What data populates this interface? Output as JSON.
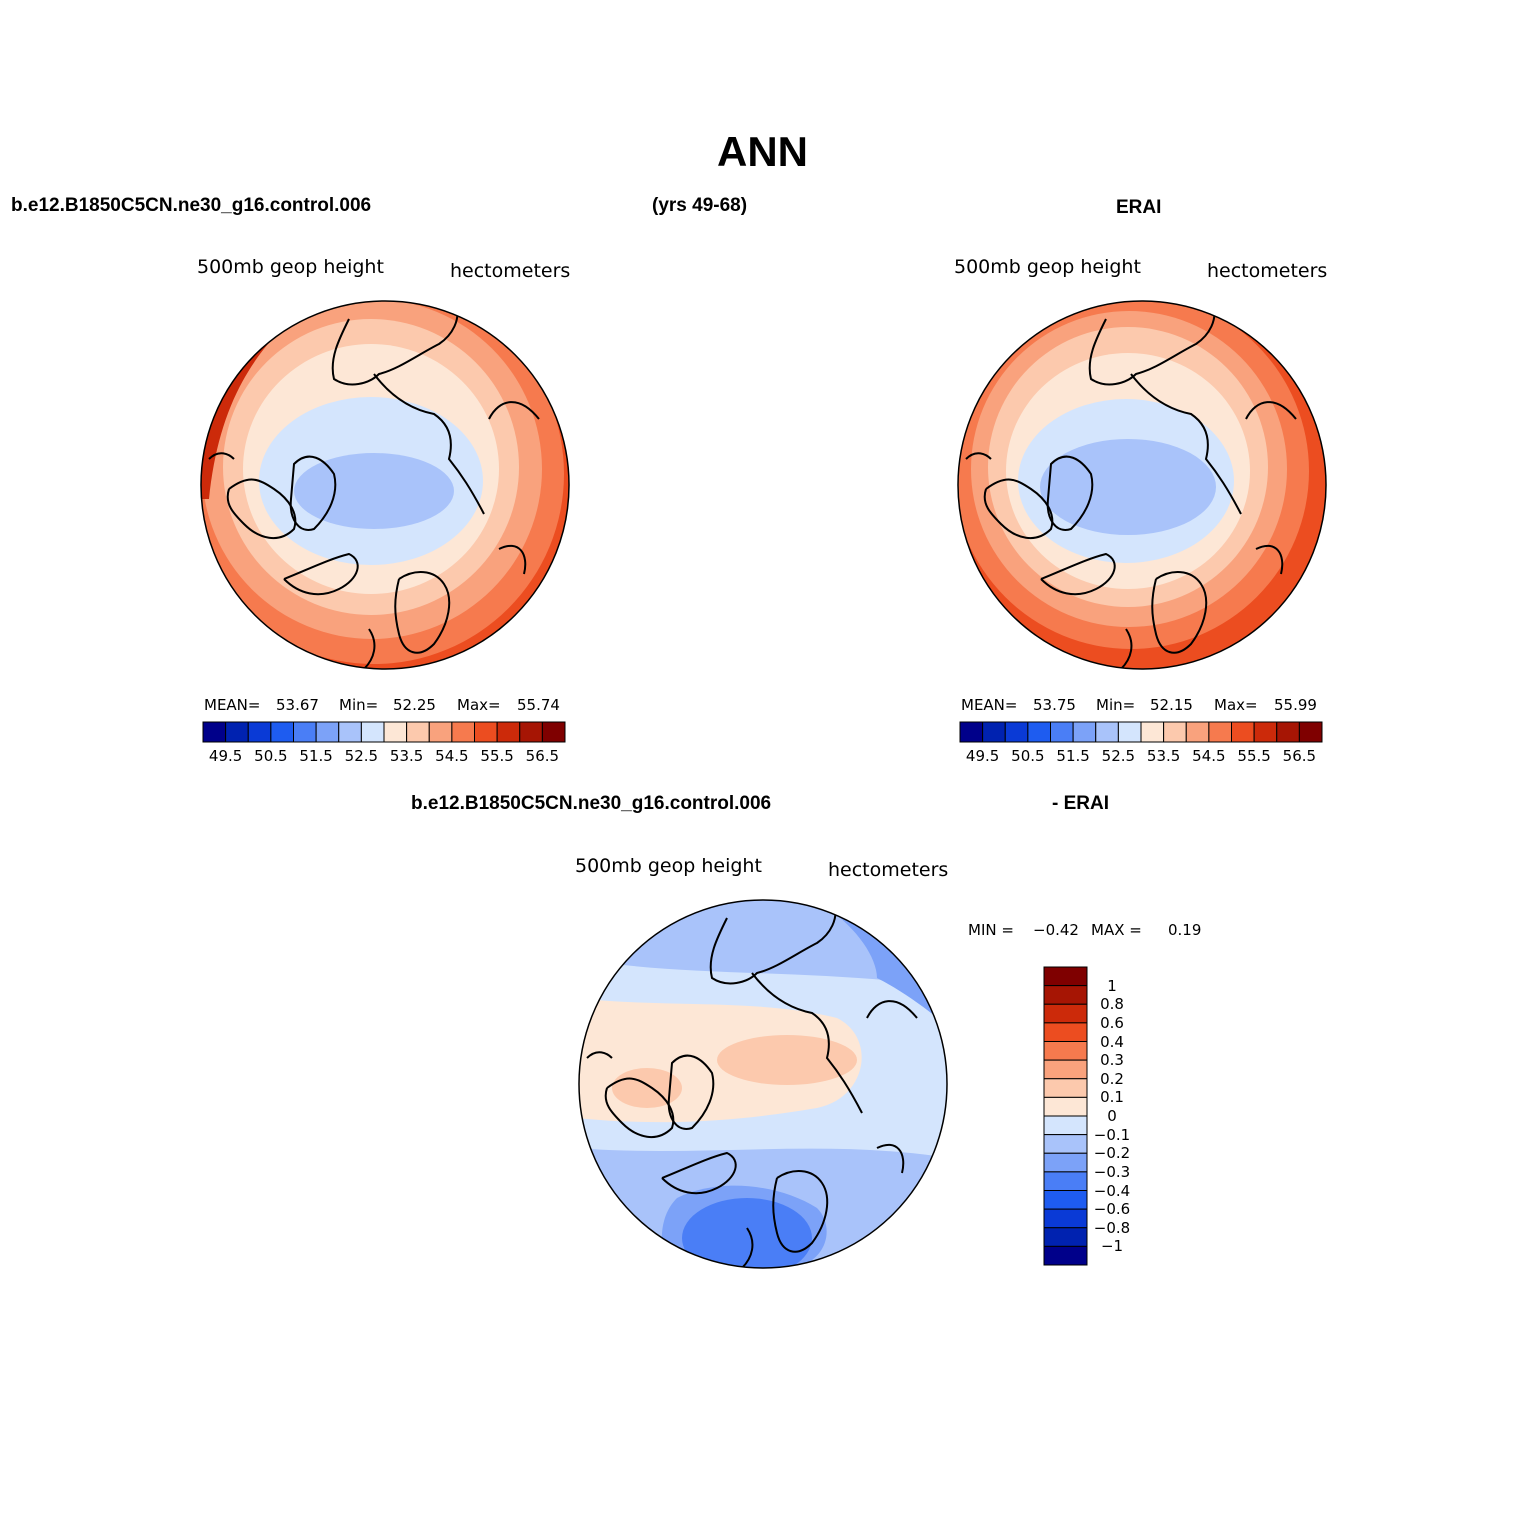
{
  "title": "ANN",
  "header": {
    "case_name": "b.e12.B1850C5CN.ne30_g16.control.006",
    "years": "(yrs 49-68)",
    "obs_name": "ERAI",
    "diff_case": "b.e12.B1850C5CN.ne30_g16.control.006",
    "diff_obs": "- ERAI"
  },
  "panels": {
    "model": {
      "variable": "500mb geop height",
      "units": "hectometers",
      "mean_label": "MEAN=",
      "mean_value": "53.67",
      "min_label": "Min=",
      "min_value": "52.25",
      "max_label": "Max=",
      "max_value": "55.74"
    },
    "obs": {
      "variable": "500mb geop height",
      "units": "hectometers",
      "mean_label": "MEAN=",
      "mean_value": "53.75",
      "min_label": "Min=",
      "min_value": "52.15",
      "max_label": "Max=",
      "max_value": "55.99"
    },
    "diff": {
      "variable": "500mb geop height",
      "units": "hectometers",
      "min_label": "MIN =",
      "min_value": "−0.42",
      "max_label": "MAX =",
      "max_value": "0.19"
    }
  },
  "colorbar_main": {
    "colors": [
      "#00008a",
      "#0022b0",
      "#0a3ad6",
      "#1e5cf0",
      "#4a7ef6",
      "#7ca2f8",
      "#a9c3fa",
      "#d4e5fd",
      "#fde7d6",
      "#fcc9ad",
      "#f9a27d",
      "#f67a4e",
      "#ec4d20",
      "#cc2a0a",
      "#a61504",
      "#7f0000"
    ],
    "labels": [
      "49.5",
      "50.5",
      "51.5",
      "52.5",
      "53.5",
      "54.5",
      "55.5",
      "56.5"
    ]
  },
  "colorbar_diff": {
    "colors": [
      "#00008a",
      "#0022b0",
      "#0a3ad6",
      "#1e5cf0",
      "#4a7ef6",
      "#7ca2f8",
      "#a9c3fa",
      "#d4e5fd",
      "#fde7d6",
      "#fcc9ad",
      "#f9a27d",
      "#f67a4e",
      "#ec4d20",
      "#cc2a0a",
      "#a61504",
      "#7f0000"
    ],
    "labels": [
      "1",
      "0.8",
      "0.6",
      "0.4",
      "0.3",
      "0.2",
      "0.1",
      "0",
      "−0.1",
      "−0.2",
      "−0.3",
      "−0.4",
      "−0.6",
      "−0.8",
      "−1"
    ]
  },
  "colors": {
    "map_edge": "#000000",
    "coast": "#000000"
  }
}
